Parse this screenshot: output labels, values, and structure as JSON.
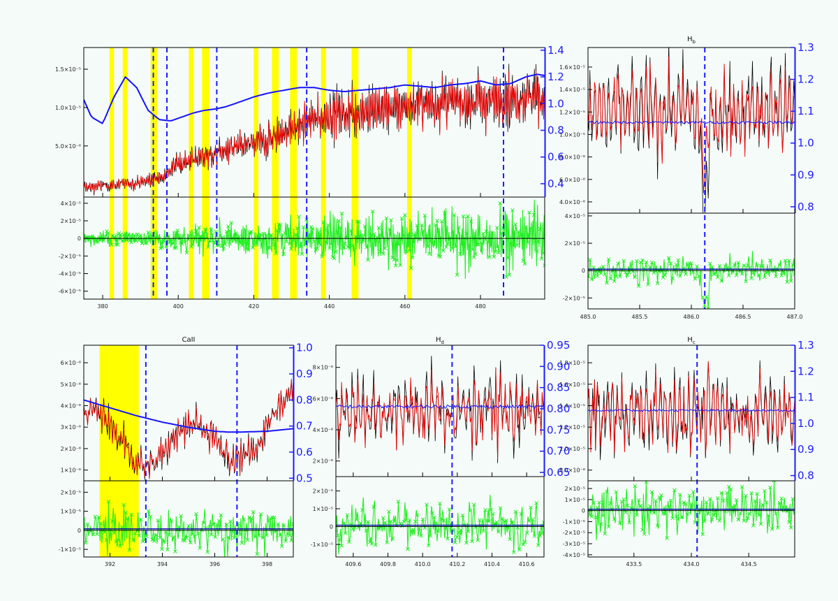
{
  "chart_data": [
    {
      "id": "overview",
      "type": "line",
      "title": "",
      "x_ticks": [
        "380",
        "400",
        "420",
        "440",
        "460",
        "480"
      ],
      "xlim": [
        375,
        497
      ],
      "y_ticks_left": [
        "5.0×10⁻⁶",
        "1.0×10⁻⁵",
        "1.5×10⁻⁵"
      ],
      "ylim_left": [
        1.5e-06,
        1.7e-05
      ],
      "y_ticks_right": [
        "0.4",
        "0.6",
        "0.8",
        "1.0",
        "1.2",
        "1.4"
      ],
      "ylim_right": [
        0.3,
        1.42
      ],
      "resid_ticks": [
        "4×10⁻⁵",
        "2×10⁻⁵",
        "0",
        "-2×10⁻⁵",
        "-4×10⁻⁵",
        "-6×10⁻⁵"
      ],
      "resid_lim": [
        -6.9e-05,
        4.7e-05
      ],
      "yellow_bands": [
        [
          381.8,
          383.0
        ],
        [
          385.3,
          386.6
        ],
        [
          392.7,
          394.5
        ],
        [
          402.8,
          404.1
        ],
        [
          406.3,
          408.2
        ],
        [
          420.0,
          421.2
        ],
        [
          424.8,
          426.6
        ],
        [
          429.6,
          431.4
        ],
        [
          437.8,
          439.1
        ],
        [
          445.9,
          447.7
        ],
        [
          460.6,
          461.8
        ]
      ],
      "dashed_lines": [
        393.4,
        397.0,
        410.2,
        434.0,
        486.1
      ],
      "continuum": {
        "x": [
          375,
          377,
          380,
          383,
          386,
          389,
          392,
          395,
          398,
          401,
          404,
          407,
          410,
          413,
          416,
          420,
          424,
          428,
          432,
          436,
          440,
          444,
          448,
          452,
          456,
          460,
          464,
          468,
          472,
          476,
          480,
          484,
          488,
          492,
          495,
          497
        ],
        "y": [
          1.03,
          0.9,
          0.85,
          1.05,
          1.2,
          1.12,
          0.95,
          0.88,
          0.87,
          0.9,
          0.93,
          0.95,
          0.96,
          0.98,
          1.01,
          1.05,
          1.08,
          1.1,
          1.12,
          1.12,
          1.1,
          1.09,
          1.1,
          1.11,
          1.12,
          1.14,
          1.13,
          1.12,
          1.14,
          1.15,
          1.17,
          1.14,
          1.15,
          1.2,
          1.22,
          1.21
        ]
      },
      "model_trend": {
        "x": [
          375,
          390,
          395,
          400,
          410,
          420,
          430,
          435,
          440,
          450,
          460,
          470,
          480,
          490,
          497
        ],
        "y": [
          2.5e-06,
          3e-06,
          3.5e-06,
          5e-06,
          6e-06,
          7e-06,
          8.5e-06,
          9.5e-06,
          1e-05,
          1.05e-05,
          1.1e-05,
          1.13e-05,
          1.15e-05,
          1.18e-05,
          1.2e-05
        ]
      }
    },
    {
      "id": "hb",
      "type": "line",
      "title": "Hb",
      "title_main": "H",
      "title_sub": "b",
      "x_ticks": [
        "485.0",
        "485.5",
        "486.0",
        "486.5",
        "487.0"
      ],
      "xlim": [
        485.0,
        487.0
      ],
      "y_ticks_left": [
        "1.6×10⁻⁵",
        "1.4×10⁻⁵",
        "1.2×10⁻⁵",
        "1.0×10⁻⁵",
        "8.0×10⁻⁶",
        "6.0×10⁻⁶",
        "4.0×10⁻⁶"
      ],
      "ylim_left": [
        3.2e-06,
        1.68e-05
      ],
      "y_ticks_right": [
        "0.8",
        "0.9",
        "1.0",
        "1.1",
        "1.2",
        "1.3"
      ],
      "ylim_right": [
        0.78,
        1.3
      ],
      "resid_ticks": [
        "4×10⁻⁵",
        "2×10⁻⁵",
        "0",
        "-2×10⁻⁵"
      ],
      "resid_lim": [
        -2.8e-05,
        4.2e-05
      ],
      "dashed_lines": [
        486.13
      ],
      "continuum_level": 1.065,
      "line_center": 486.13,
      "line_depth_data": 8.2e-06,
      "base_level": 1.15e-05
    },
    {
      "id": "caii",
      "type": "line",
      "title": "CaII",
      "x_ticks": [
        "392",
        "394",
        "396",
        "398"
      ],
      "xlim": [
        391.0,
        399.0
      ],
      "y_ticks_left": [
        "6×10⁻⁶",
        "5×10⁻⁶",
        "4×10⁻⁶",
        "3×10⁻⁶",
        "2×10⁻⁶",
        "1×10⁻⁶"
      ],
      "ylim_left": [
        2e-07,
        6.8e-06
      ],
      "y_ticks_right": [
        "0.5",
        "0.6",
        "0.7",
        "0.8",
        "0.9",
        "1.0"
      ],
      "ylim_right": [
        0.49,
        1.01
      ],
      "resid_ticks": [
        "2×10⁻⁵",
        "1×10⁻⁵",
        "0",
        "-1×10⁻⁵"
      ],
      "resid_lim": [
        -1.4e-05,
        2.6e-05
      ],
      "yellow_bands": [
        [
          391.6,
          393.1
        ]
      ],
      "dashed_lines": [
        393.37,
        396.85
      ],
      "continuum": {
        "x": [
          391,
          392,
          393,
          394,
          395,
          396,
          396.5,
          397,
          398,
          399
        ],
        "y": [
          0.8,
          0.77,
          0.74,
          0.715,
          0.695,
          0.68,
          0.677,
          0.677,
          0.68,
          0.69
        ]
      }
    },
    {
      "id": "hd",
      "type": "line",
      "title": "Hd",
      "title_main": "H",
      "title_sub": "d",
      "x_ticks": [
        "409.6",
        "409.8",
        "410.0",
        "410.2",
        "410.4",
        "410.6"
      ],
      "xlim": [
        409.5,
        410.7
      ],
      "y_ticks_left": [
        "8×10⁻⁶",
        "6×10⁻⁶",
        "4×10⁻⁶",
        "2×10⁻⁶"
      ],
      "ylim_left": [
        1.2e-06,
        9.2e-06
      ],
      "y_ticks_right": [
        "0.65",
        "0.70",
        "0.75",
        "0.80",
        "0.85",
        "0.90",
        "0.95"
      ],
      "ylim_right": [
        0.64,
        0.95
      ],
      "resid_ticks": [
        "2×10⁻⁵",
        "1×10⁻⁵",
        "0",
        "-1×10⁻⁵"
      ],
      "resid_lim": [
        -1.7e-05,
        2.8e-05
      ],
      "dashed_lines": [
        410.17
      ],
      "continuum_level": 0.805
    },
    {
      "id": "hc",
      "type": "line",
      "title": "Hc",
      "title_main": "H",
      "title_sub": "c",
      "x_ticks": [
        "433.5",
        "434.0",
        "434.5"
      ],
      "xlim": [
        433.1,
        434.9
      ],
      "y_ticks_left": [
        "1.8×10⁻⁵",
        "1.6×10⁻⁵",
        "1.4×10⁻⁵",
        "1.2×10⁻⁵",
        "1.0×10⁻⁵",
        "8.0×10⁻⁶"
      ],
      "ylim_left": [
        6.8e-06,
        1.85e-05
      ],
      "y_ticks_right": [
        "0.8",
        "0.9",
        "1.0",
        "1.1",
        "1.2",
        "1.3"
      ],
      "ylim_right": [
        0.78,
        1.3
      ],
      "resid_ticks": [
        "2×10⁻⁵",
        "1×10⁻⁵",
        "0",
        "-1×10⁻⁵",
        "-2×10⁻⁵",
        "-3×10⁻⁵",
        "-4×10⁻⁵"
      ],
      "resid_lim": [
        -4.2e-05,
        2.7e-05
      ],
      "dashed_lines": [
        434.05
      ],
      "continuum_level": 1.05
    }
  ],
  "colors": {
    "observed": "#000000",
    "model": "#ee0000",
    "continuum": "#1414ff",
    "residual": "#22ee22",
    "band": "#ffff00",
    "dashed": "#1a1aff"
  }
}
